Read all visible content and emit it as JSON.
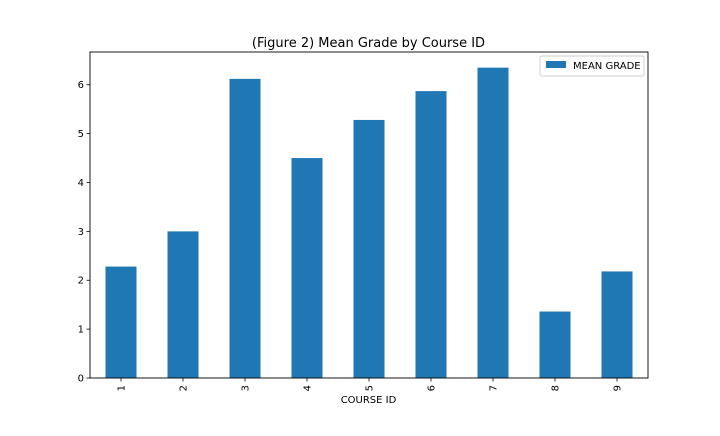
{
  "chart_data": {
    "type": "bar",
    "title": "(Figure 2) Mean Grade by Course ID",
    "xlabel": "COURSE ID",
    "ylabel": "",
    "categories": [
      "1",
      "2",
      "3",
      "4",
      "5",
      "6",
      "7",
      "8",
      "9"
    ],
    "series": [
      {
        "name": "MEAN GRADE",
        "values": [
          2.28,
          3.0,
          6.12,
          4.5,
          5.28,
          5.87,
          6.35,
          1.36,
          2.18
        ],
        "color": "#1f77b4"
      }
    ],
    "yticks": [
      0,
      1,
      2,
      3,
      4,
      5,
      6
    ],
    "ylim": [
      0,
      6.67
    ],
    "grid": false,
    "legend_position": "top-right",
    "x_tick_label_rotation": "vertical"
  }
}
